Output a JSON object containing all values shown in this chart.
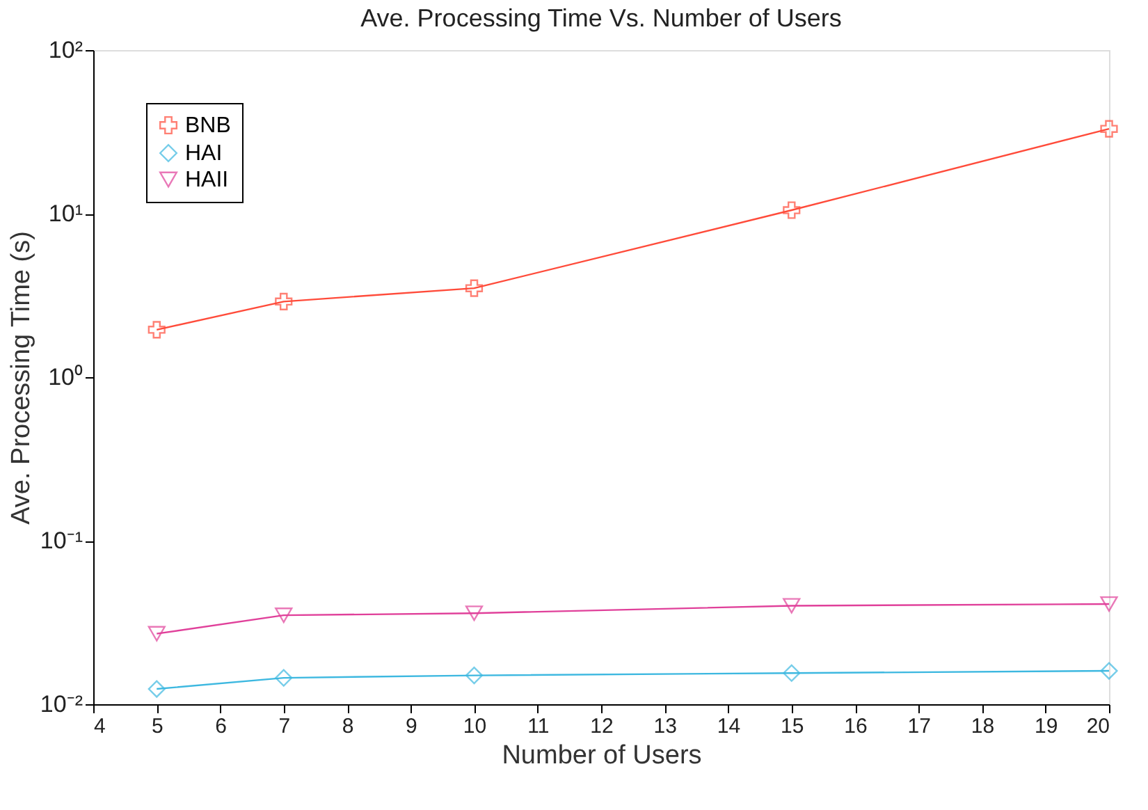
{
  "chart_data": {
    "type": "line",
    "title": "Ave. Processing Time Vs. Number of Users",
    "xlabel": "Number of Users",
    "ylabel": "Ave. Processing Time (s)",
    "x": [
      5,
      7,
      10,
      15,
      20
    ],
    "series": [
      {
        "name": "BNB",
        "color": "#ff4b3a",
        "marker": "cross",
        "values": [
          1.95,
          2.9,
          3.5,
          10.5,
          33
        ]
      },
      {
        "name": "HAI",
        "color": "#3db8e0",
        "marker": "diamond",
        "values": [
          0.0124,
          0.0145,
          0.015,
          0.0155,
          0.016
        ]
      },
      {
        "name": "HAII",
        "color": "#e0409a",
        "marker": "triangle",
        "values": [
          0.027,
          0.035,
          0.036,
          0.04,
          0.041
        ]
      }
    ],
    "log": "y",
    "grid": false,
    "legend": "top left",
    "xlim": [
      4,
      20
    ],
    "xticks": [
      4,
      5,
      6,
      7,
      8,
      9,
      10,
      11,
      12,
      13,
      14,
      15,
      16,
      17,
      18,
      19,
      20
    ],
    "ylim": [
      0.01,
      100
    ],
    "yticks": [
      {
        "value": 0.01,
        "label": "10⁻²"
      },
      {
        "value": 0.1,
        "label": "10⁻¹"
      },
      {
        "value": 1,
        "label": "10⁰"
      },
      {
        "value": 10,
        "label": "10¹"
      },
      {
        "value": 100,
        "label": "10²"
      }
    ]
  }
}
